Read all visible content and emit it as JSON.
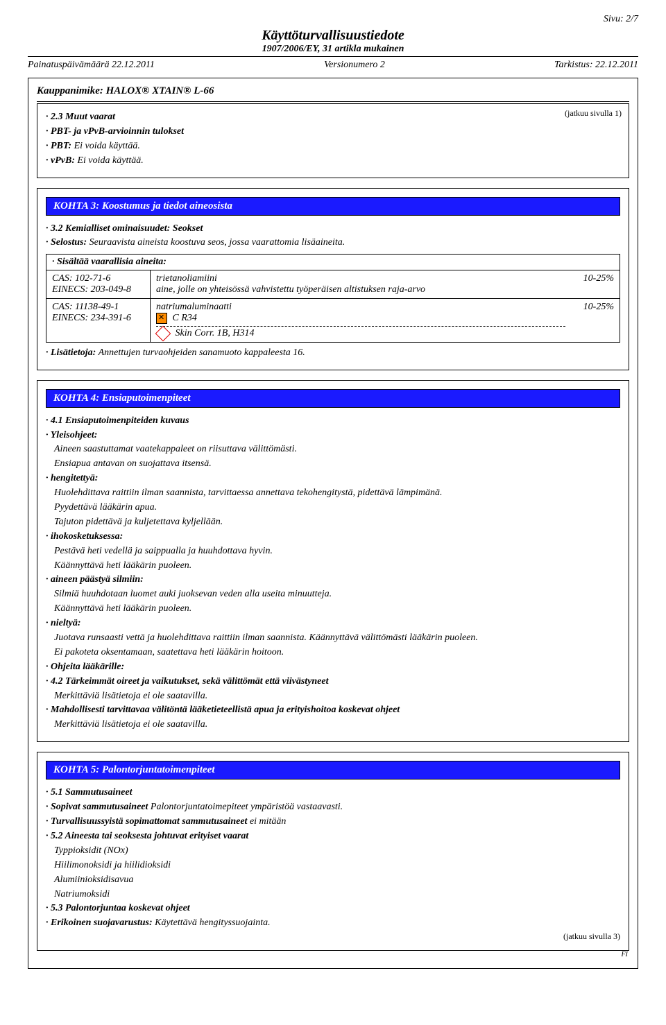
{
  "page_number": "Sivu: 2/7",
  "doc_title": "Käyttöturvallisuustiedote",
  "doc_subtitle": "1907/2006/EY, 31 artikla mukainen",
  "meta": {
    "print_date": "Painatuspäivämäärä 22.12.2011",
    "version": "Versionumero 2",
    "revision": "Tarkistus: 22.12.2011"
  },
  "trade_name": "Kauppanimike: HALOX® XTAIN® L-66",
  "cont_from": "(jatkuu sivulla 1)",
  "sec2": {
    "h1": "· 2.3 Muut vaarat",
    "h2": "· PBT- ja vPvB-arvioinnin tulokset",
    "l1": "· PBT: Ei voida käyttää.",
    "l2": "· vPvB: Ei voida käyttää."
  },
  "sec3": {
    "title": "KOHTA 3: Koostumus ja tiedot aineosista",
    "h1": "· 3.2 Kemialliset ominaisuudet: Seokset",
    "l1": "· Selostus: Seuraavista aineista koostuva seos, jossa vaarattomia lisäaineita.",
    "ing_header": "· Sisältää vaarallisia aineita:",
    "row1": {
      "cas": "CAS: 102-71-6",
      "einecs": "EINECS: 203-049-8",
      "name": "trietanoliamiini",
      "desc": "aine, jolle on yhteisössä vahvistettu työperäisen altistuksen raja-arvo",
      "pct": "10-25%"
    },
    "row2": {
      "cas": "CAS: 11138-49-1",
      "einecs": "EINECS: 234-391-6",
      "name": "natriumaluminaatti",
      "h1": "C R34",
      "h2": "Skin Corr. 1B, H314",
      "pct": "10-25%"
    },
    "footer": "· Lisätietoja: Annettujen turvaohjeiden sanamuoto kappaleesta 16."
  },
  "sec4": {
    "title": "KOHTA 4: Ensiaputoimenpiteet",
    "h1": "· 4.1 Ensiaputoimenpiteiden kuvaus",
    "gen_lbl": "· Yleisohjeet:",
    "gen1": "Aineen saastuttamat vaatekappaleet on riisuttava välittömästi.",
    "gen2": "Ensiapua antavan on suojattava itsensä.",
    "inh_lbl": "· hengitettyä:",
    "inh1": "Huolehdittava raittiin ilman saannista, tarvittaessa annettava tekohengitystä, pidettävä lämpimänä.",
    "inh2": "Pyydettävä lääkärin apua.",
    "inh3": "Tajuton pidettävä ja kuljetettava kyljellään.",
    "skin_lbl": "· ihokosketuksessa:",
    "skin1": "Pestävä heti vedellä ja saippualla ja huuhdottava hyvin.",
    "skin2": "Käännyttävä heti lääkärin puoleen.",
    "eye_lbl": "· aineen päästyä silmiin:",
    "eye1": "Silmiä huuhdotaan luomet auki juoksevan veden alla useita minuutteja.",
    "eye2": "Käännyttävä heti lääkärin puoleen.",
    "ing_lbl": "· nieltyä:",
    "ing1": "Juotava runsaasti vettä ja huolehdittava raittiin ilman saannista. Käännyttävä välittömästi lääkärin puoleen.",
    "ing2": "Ei pakoteta oksentamaan, saatettava heti lääkärin hoitoon.",
    "doc_lbl": "· Ohjeita lääkärille:",
    "h2": "· 4.2 Tärkeimmät oireet ja vaikutukset, sekä välittömät että viivästyneet",
    "na1": "Merkittäviä lisätietoja ei ole saatavilla.",
    "h3": "· Mahdollisesti tarvittavaa välitöntä lääketieteellistä apua ja erityishoitoa koskevat ohjeet",
    "na2": "Merkittäviä lisätietoja ei ole saatavilla."
  },
  "sec5": {
    "title": "KOHTA 5: Palontorjuntatoimenpiteet",
    "h1": "· 5.1 Sammutusaineet",
    "l1_lbl": "· Sopivat sammutusaineet ",
    "l1_txt": "Palontorjuntatoimepiteet ympäristöä vastaavasti.",
    "l2_lbl": "· Turvallisuussyistä sopimattomat sammutusaineet ",
    "l2_txt": "ei mitään",
    "h2": "· 5.2 Aineesta tai seoksesta johtuvat erityiset vaarat",
    "v1": "Typpioksidit (NOx)",
    "v2": "Hiilimonoksidi ja hiilidioksidi",
    "v3": "Alumiinioksidisavua",
    "v4": "Natriumoksidi",
    "h3": "· 5.3 Palontorjuntaa koskevat ohjeet",
    "l3_lbl": "· Erikoinen suojavarustus: ",
    "l3_txt": "Käytettävä hengityssuojainta."
  },
  "cont_to": "(jatkuu sivulla 3)",
  "lang": "FI"
}
